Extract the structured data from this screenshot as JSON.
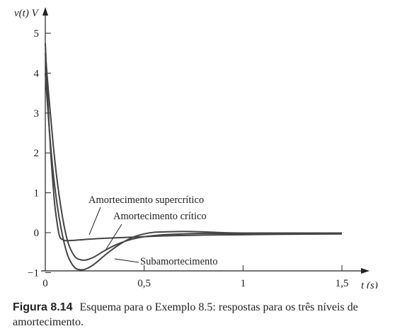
{
  "chart_data": {
    "type": "line",
    "ylabel": "v(t) V",
    "xlabel": "t (s)",
    "xlim": [
      0,
      1.6
    ],
    "ylim": [
      -1,
      5.6
    ],
    "xticks": [
      {
        "value": 0,
        "label": "0"
      },
      {
        "value": 0.5,
        "label": "0,5"
      },
      {
        "value": 1,
        "label": "1"
      },
      {
        "value": 1.5,
        "label": "1,5"
      }
    ],
    "yticks": [
      {
        "value": 5,
        "label": "5"
      },
      {
        "value": 4,
        "label": "4"
      },
      {
        "value": 3,
        "label": "3"
      },
      {
        "value": 2,
        "label": "2"
      },
      {
        "value": 1,
        "label": "1"
      },
      {
        "value": 0,
        "label": "0"
      },
      {
        "value": -1,
        "label": "−1"
      }
    ],
    "grid": false,
    "series": [
      {
        "name": "Amortecimento supercrítico",
        "x": [
          0,
          0.01,
          0.02,
          0.03,
          0.04,
          0.05,
          0.07,
          0.09,
          0.11,
          0.15,
          0.2,
          0.3,
          0.4,
          0.5,
          0.6,
          0.8,
          1.0,
          1.2,
          1.5
        ],
        "y": [
          4.75,
          3.6,
          2.6,
          1.8,
          1.15,
          0.6,
          -0.05,
          -0.18,
          -0.2,
          -0.19,
          -0.17,
          -0.14,
          -0.12,
          -0.1,
          -0.08,
          -0.06,
          -0.05,
          -0.04,
          -0.03
        ]
      },
      {
        "name": "Amortecimento crítico",
        "x": [
          0,
          0.02,
          0.04,
          0.06,
          0.08,
          0.1,
          0.12,
          0.15,
          0.18,
          0.21,
          0.25,
          0.3,
          0.35,
          0.4,
          0.45,
          0.5,
          0.6,
          0.7,
          0.8,
          1.0,
          1.2,
          1.5
        ],
        "y": [
          4.5,
          3.3,
          2.2,
          1.3,
          0.6,
          0.05,
          -0.32,
          -0.6,
          -0.68,
          -0.68,
          -0.6,
          -0.45,
          -0.32,
          -0.22,
          -0.15,
          -0.1,
          -0.05,
          -0.03,
          -0.02,
          -0.02,
          -0.02,
          -0.02
        ]
      },
      {
        "name": "Subamortecimento",
        "x": [
          0,
          0.02,
          0.04,
          0.06,
          0.08,
          0.1,
          0.12,
          0.15,
          0.18,
          0.21,
          0.25,
          0.3,
          0.35,
          0.4,
          0.45,
          0.5,
          0.55,
          0.6,
          0.7,
          0.8,
          0.9,
          1.0,
          1.2,
          1.5
        ],
        "y": [
          4.0,
          2.6,
          1.5,
          0.7,
          0.1,
          -0.35,
          -0.65,
          -0.88,
          -0.93,
          -0.9,
          -0.78,
          -0.57,
          -0.38,
          -0.22,
          -0.1,
          -0.03,
          0.01,
          0.02,
          0.03,
          0.02,
          0.0,
          -0.01,
          -0.01,
          -0.01
        ]
      }
    ],
    "annotations": [
      {
        "text": "Amortecimento supercrítico",
        "series": 0
      },
      {
        "text": "Amortecimento crítico",
        "series": 1
      },
      {
        "text": "Subamortecimento",
        "series": 2
      }
    ]
  },
  "caption": {
    "label": "Figura 8.14",
    "text": "Esquema para o Exemplo 8.5: respostas para os três níveis de amortecimento."
  }
}
